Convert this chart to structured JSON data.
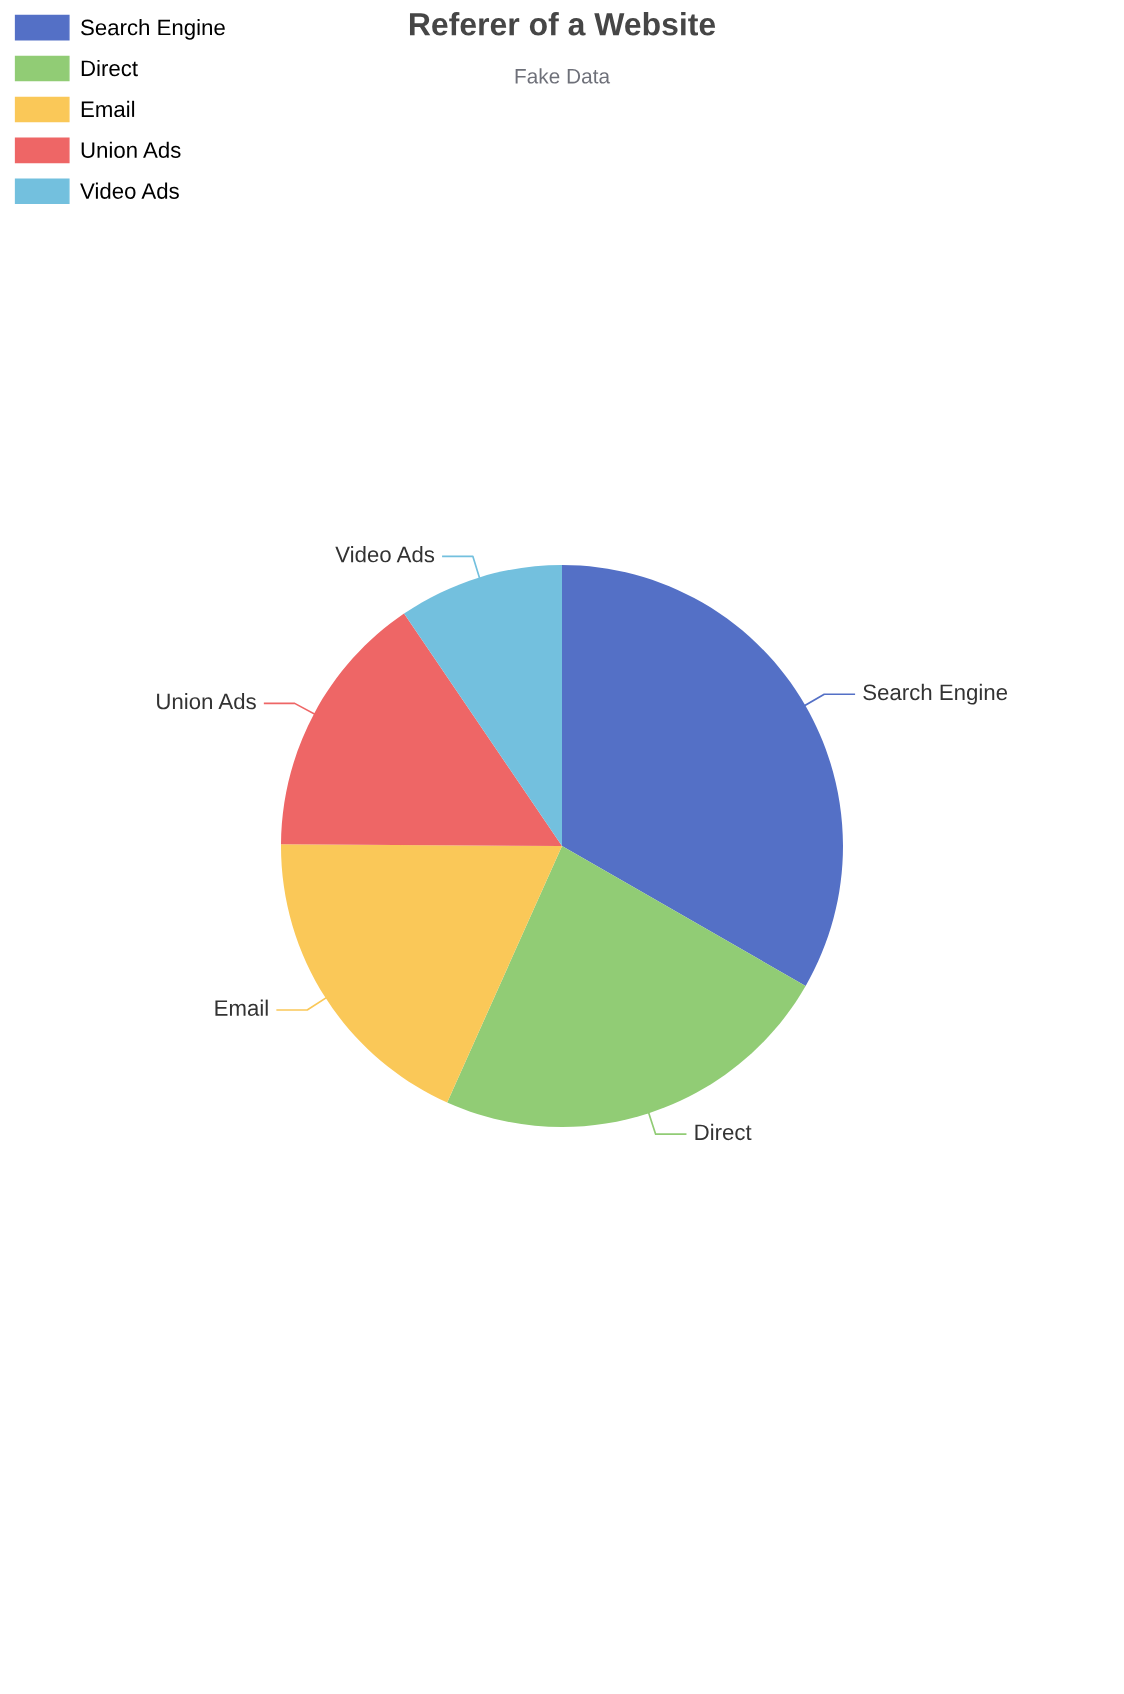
{
  "chart_data": {
    "type": "pie",
    "title": "Referer of a Website",
    "subtitle": "Fake Data",
    "categories": [
      "Search Engine",
      "Direct",
      "Email",
      "Union Ads",
      "Video Ads"
    ],
    "values": [
      33.3,
      23.4,
      18.4,
      15.4,
      9.5
    ],
    "colors": [
      "#5470c6",
      "#91cc75",
      "#fac858",
      "#ee6666",
      "#73c0de"
    ],
    "legend": "top left"
  }
}
